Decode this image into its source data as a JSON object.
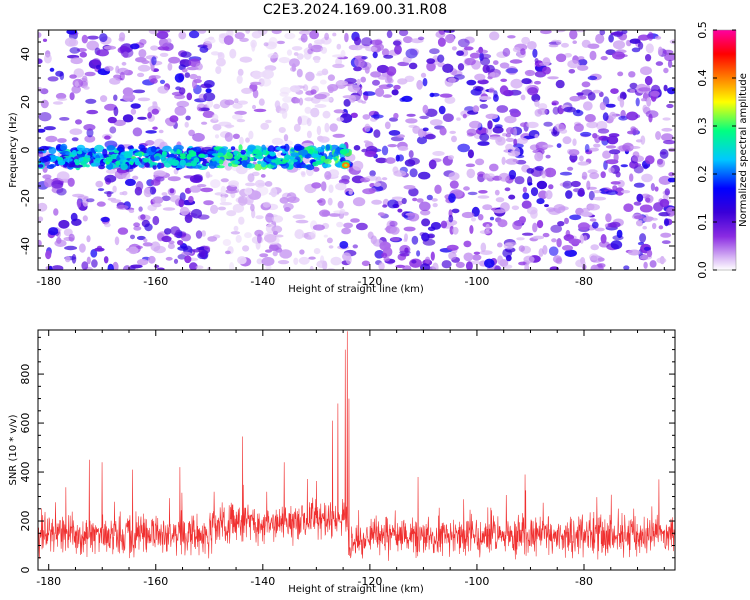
{
  "title": "C2E3.2024.169.00.31.R08",
  "chart_data": [
    {
      "type": "heatmap",
      "xlabel": "Height of straight line (km)",
      "ylabel": "Frequency (Hz)",
      "xlim": [
        -182,
        -63
      ],
      "ylim": [
        -50,
        50
      ],
      "x_ticks": [
        -180,
        -160,
        -140,
        -120,
        -100,
        -80
      ],
      "y_ticks": [
        -40,
        -20,
        0,
        20,
        40
      ],
      "colorbar": {
        "label": "Normalized spectral amplitude",
        "range": [
          0.0,
          0.5
        ],
        "ticks": [
          0.0,
          0.1,
          0.2,
          0.3,
          0.4,
          0.5
        ],
        "colormap": [
          "#ffffff",
          "#d9b8f5",
          "#8a2be2",
          "#3a00d8",
          "#0000ff",
          "#00c8ff",
          "#00ff80",
          "#ffff00",
          "#ff8000",
          "#ff0000",
          "#ff00a0"
        ]
      },
      "signal_band": {
        "x": [
          -182,
          -124
        ],
        "frequency_center": -3,
        "peak_amplitude": 0.4,
        "peak_x": -124.5
      },
      "gap_region": [
        -150,
        -125
      ],
      "grid": false
    },
    {
      "type": "line",
      "xlabel": "Height of straight line (km)",
      "ylabel": "SNR (10 * v/v)",
      "xlim": [
        -182,
        -63
      ],
      "ylim": [
        0,
        980
      ],
      "x_ticks": [
        -180,
        -160,
        -140,
        -120,
        -100,
        -80
      ],
      "y_ticks": [
        0,
        200,
        400,
        600,
        800
      ],
      "color": "#f03030",
      "baseline_mean": 140,
      "noise_spread": 70,
      "peaks": [
        {
          "x": -124.2,
          "value": 975
        },
        {
          "x": -124.6,
          "value": 900
        },
        {
          "x": -123.9,
          "value": 700
        },
        {
          "x": -126.0,
          "value": 680
        },
        {
          "x": -127.0,
          "value": 610
        },
        {
          "x": -143.8,
          "value": 545
        },
        {
          "x": -172.4,
          "value": 450
        },
        {
          "x": -170.0,
          "value": 440
        },
        {
          "x": -136.0,
          "value": 440
        },
        {
          "x": -155.5,
          "value": 420
        },
        {
          "x": -164.3,
          "value": 410
        },
        {
          "x": -91.0,
          "value": 390
        },
        {
          "x": -111.0,
          "value": 380
        },
        {
          "x": -66.0,
          "value": 370
        }
      ],
      "grid": false
    }
  ]
}
